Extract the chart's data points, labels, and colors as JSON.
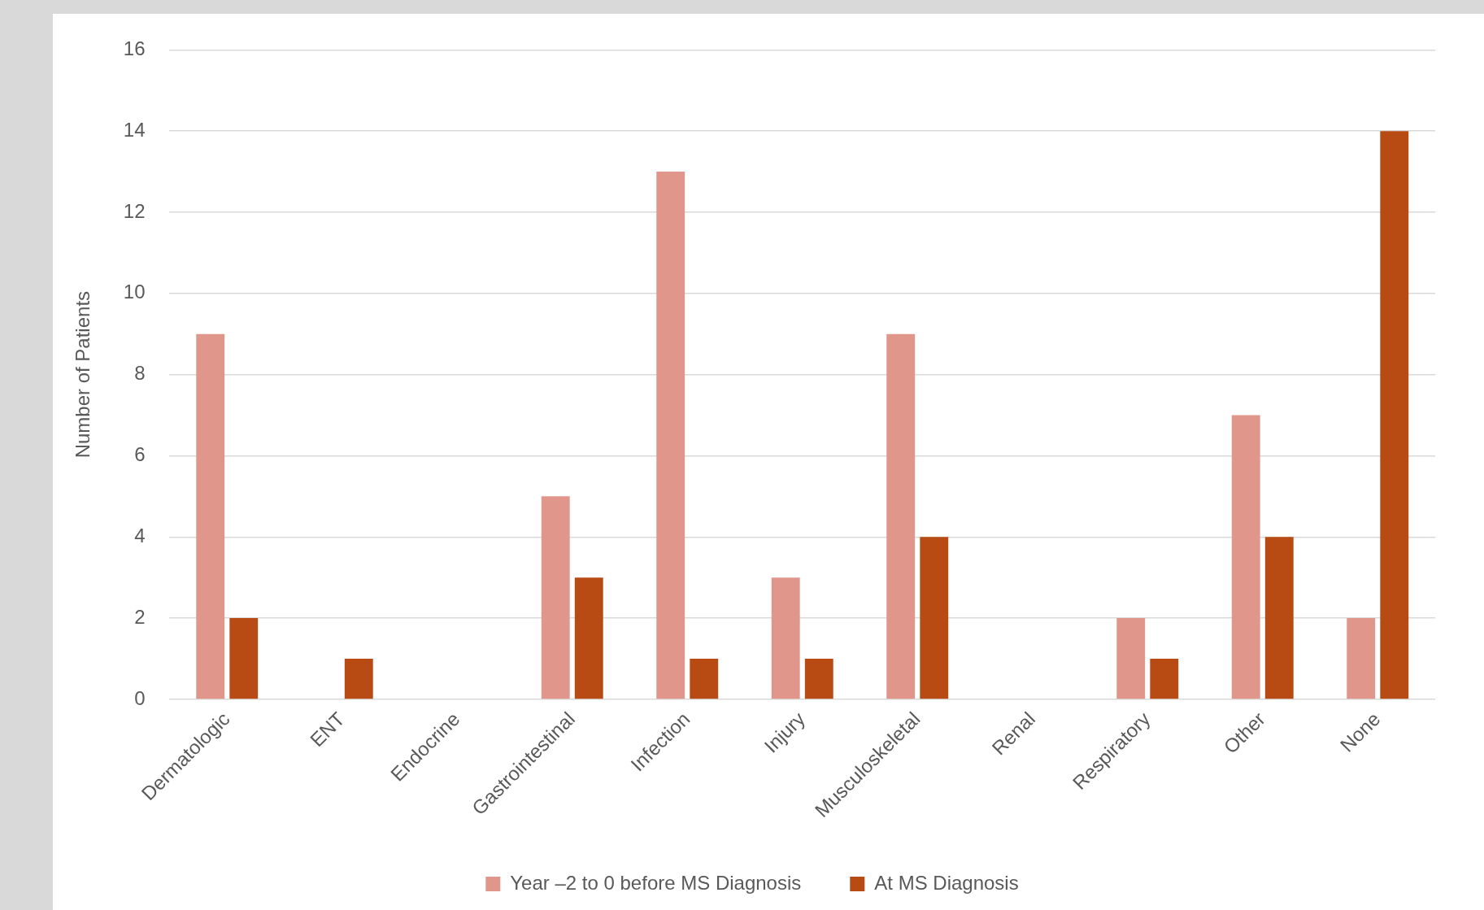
{
  "chart_data": {
    "type": "bar",
    "ylabel": "Number of Patients",
    "categories": [
      "Dermatologic",
      "ENT",
      "Endocrine",
      "Gastrointestinal",
      "Infection",
      "Injury",
      "Musculoskeletal",
      "Renal",
      "Respiratory",
      "Other",
      "None"
    ],
    "series": [
      {
        "name": "Year –2 to 0 before MS Diagnosis",
        "color": "#e0968a",
        "values": [
          9,
          0,
          0,
          5,
          13,
          3,
          9,
          0,
          2,
          7,
          2
        ]
      },
      {
        "name": "At MS Diagnosis",
        "color": "#b84b14",
        "values": [
          2,
          1,
          0,
          3,
          1,
          1,
          4,
          0,
          1,
          4,
          14
        ]
      }
    ],
    "ylim": [
      0,
      16
    ],
    "yticks": [
      0,
      2,
      4,
      6,
      8,
      10,
      12,
      14,
      16
    ],
    "grid": "y",
    "legend": "bottom"
  }
}
